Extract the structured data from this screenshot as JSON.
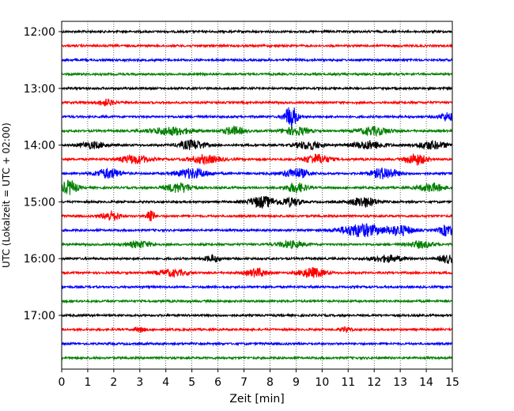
{
  "chart_data": {
    "type": "line",
    "title": "",
    "xlabel": "Zeit  [min]",
    "ylabel": "UTC (Lokalzeit = UTC + 02:00)",
    "xlim": [
      0,
      15
    ],
    "x_ticks": [
      0,
      1,
      2,
      3,
      4,
      5,
      6,
      7,
      8,
      9,
      10,
      11,
      12,
      13,
      14,
      15
    ],
    "x_tick_labels": [
      "0",
      "1",
      "2",
      "3",
      "4",
      "5",
      "6",
      "7",
      "8",
      "9",
      "10",
      "11",
      "12",
      "13",
      "14",
      "15"
    ],
    "y_ticks": [
      {
        "label": "12:00",
        "trace": 0
      },
      {
        "label": "13:00",
        "trace": 4
      },
      {
        "label": "14:00",
        "trace": 8
      },
      {
        "label": "15:00",
        "trace": 12
      },
      {
        "label": "16:00",
        "trace": 16
      },
      {
        "label": "17:00",
        "trace": 20
      }
    ],
    "grid": "vertical-dotted",
    "colors": [
      "#000000",
      "#ff0000",
      "#0000ff",
      "#008000"
    ],
    "traces_start_minute": 0,
    "trace_interval_minutes": 15,
    "series": [
      {
        "start": "12:00",
        "color": "#000000",
        "bursts": []
      },
      {
        "start": "12:15",
        "color": "#ff0000",
        "bursts": []
      },
      {
        "start": "12:30",
        "color": "#0000ff",
        "bursts": []
      },
      {
        "start": "12:45",
        "color": "#008000",
        "bursts": []
      },
      {
        "start": "13:00",
        "color": "#000000",
        "bursts": []
      },
      {
        "start": "13:15",
        "color": "#ff0000",
        "bursts": [
          [
            1.7,
            0.3,
            4
          ]
        ]
      },
      {
        "start": "13:30",
        "color": "#0000ff",
        "bursts": [
          [
            8.8,
            0.25,
            14
          ],
          [
            14.8,
            0.3,
            5
          ]
        ]
      },
      {
        "start": "13:45",
        "color": "#008000",
        "bursts": [
          [
            4.2,
            0.8,
            5
          ],
          [
            6.6,
            0.4,
            5
          ],
          [
            9.0,
            0.5,
            5
          ],
          [
            12.0,
            0.6,
            5
          ]
        ]
      },
      {
        "start": "14:00",
        "color": "#000000",
        "bursts": [
          [
            1.2,
            0.5,
            4
          ],
          [
            5.0,
            0.5,
            6
          ],
          [
            9.5,
            0.5,
            5
          ],
          [
            11.8,
            0.6,
            5
          ],
          [
            14.2,
            0.6,
            5
          ]
        ]
      },
      {
        "start": "14:15",
        "color": "#ff0000",
        "bursts": [
          [
            2.8,
            0.6,
            5
          ],
          [
            5.5,
            0.6,
            5
          ],
          [
            9.8,
            0.5,
            6
          ],
          [
            13.6,
            0.4,
            7
          ]
        ]
      },
      {
        "start": "14:30",
        "color": "#0000ff",
        "bursts": [
          [
            1.8,
            0.5,
            6
          ],
          [
            5.0,
            0.6,
            6
          ],
          [
            9.0,
            0.5,
            6
          ],
          [
            12.4,
            0.5,
            7
          ]
        ]
      },
      {
        "start": "14:45",
        "color": "#008000",
        "bursts": [
          [
            0.3,
            0.3,
            9
          ],
          [
            4.5,
            0.5,
            6
          ],
          [
            9.0,
            0.4,
            6
          ],
          [
            14.2,
            0.5,
            5
          ]
        ]
      },
      {
        "start": "15:00",
        "color": "#000000",
        "bursts": [
          [
            7.7,
            0.5,
            7
          ],
          [
            8.8,
            0.4,
            5
          ],
          [
            11.6,
            0.5,
            6
          ]
        ]
      },
      {
        "start": "15:15",
        "color": "#ff0000",
        "bursts": [
          [
            1.9,
            0.35,
            6
          ],
          [
            3.4,
            0.15,
            9
          ]
        ]
      },
      {
        "start": "15:30",
        "color": "#0000ff",
        "bursts": [
          [
            11.5,
            0.8,
            8
          ],
          [
            13.0,
            0.5,
            6
          ],
          [
            14.8,
            0.3,
            7
          ]
        ]
      },
      {
        "start": "15:45",
        "color": "#008000",
        "bursts": [
          [
            3.0,
            0.5,
            4
          ],
          [
            8.8,
            0.5,
            4
          ],
          [
            13.8,
            0.5,
            4
          ]
        ]
      },
      {
        "start": "16:00",
        "color": "#000000",
        "bursts": [
          [
            5.8,
            0.3,
            4
          ],
          [
            12.5,
            0.6,
            4
          ],
          [
            14.8,
            0.3,
            5
          ]
        ]
      },
      {
        "start": "16:15",
        "color": "#ff0000",
        "bursts": [
          [
            4.2,
            0.6,
            4
          ],
          [
            7.5,
            0.4,
            5
          ],
          [
            9.6,
            0.5,
            6
          ]
        ]
      },
      {
        "start": "16:30",
        "color": "#0000ff",
        "bursts": []
      },
      {
        "start": "16:45",
        "color": "#008000",
        "bursts": []
      },
      {
        "start": "17:00",
        "color": "#000000",
        "bursts": []
      },
      {
        "start": "17:15",
        "color": "#ff0000",
        "bursts": [
          [
            3.0,
            0.2,
            3
          ],
          [
            10.9,
            0.2,
            3
          ]
        ]
      },
      {
        "start": "17:30",
        "color": "#0000ff",
        "bursts": []
      },
      {
        "start": "17:45",
        "color": "#008000",
        "bursts": []
      }
    ]
  }
}
